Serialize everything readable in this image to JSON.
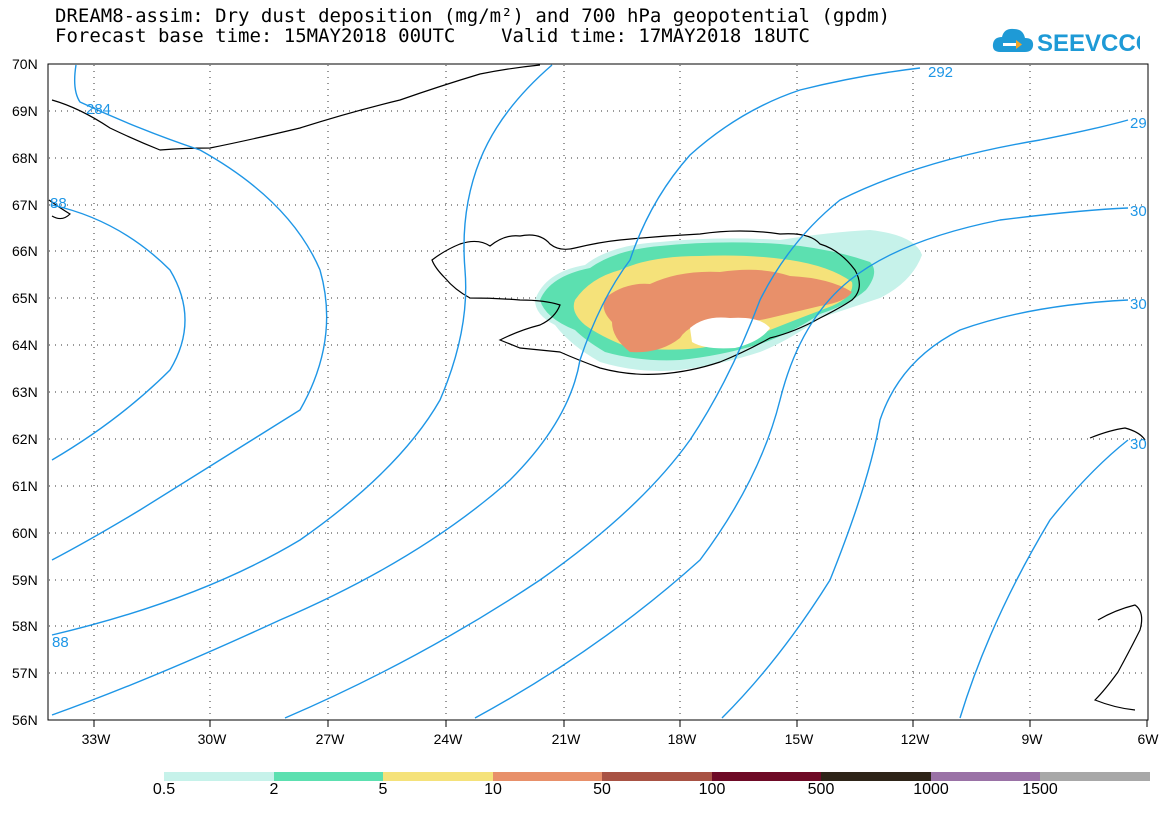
{
  "title": {
    "line1": "DREAM8-assim: Dry dust deposition (mg/m²) and 700 hPa geopotential (gpdm)",
    "line2": "Forecast base time: 15MAY2018 00UTC    Valid time: 17MAY2018 18UTC"
  },
  "logo": {
    "text": "SEEVCCC",
    "icon": "cloud-icon",
    "color": "#1e9ad6"
  },
  "map": {
    "lat_labels": [
      "70N",
      "69N",
      "68N",
      "67N",
      "66N",
      "65N",
      "64N",
      "63N",
      "62N",
      "61N",
      "60N",
      "59N",
      "58N",
      "57N",
      "56N"
    ],
    "lon_labels": [
      "33W",
      "30W",
      "27W",
      "24W",
      "21W",
      "18W",
      "15W",
      "12W",
      "9W",
      "6W"
    ],
    "contour_color": "#1e96e6",
    "contour_labels": [
      "284",
      "88",
      "88",
      "292",
      "29",
      "30",
      "30",
      "30"
    ],
    "grid": "dotted"
  },
  "colorbar": {
    "labels": [
      "0.5",
      "2",
      "5",
      "10",
      "50",
      "100",
      "500",
      "1000",
      "1500"
    ],
    "colors": [
      "#c6f2ea",
      "#5ce0b0",
      "#f5e27a",
      "#e8906a",
      "#a85244",
      "#6e0a26",
      "#2e2418",
      "#9a72a6",
      "#a8a8a8"
    ]
  }
}
